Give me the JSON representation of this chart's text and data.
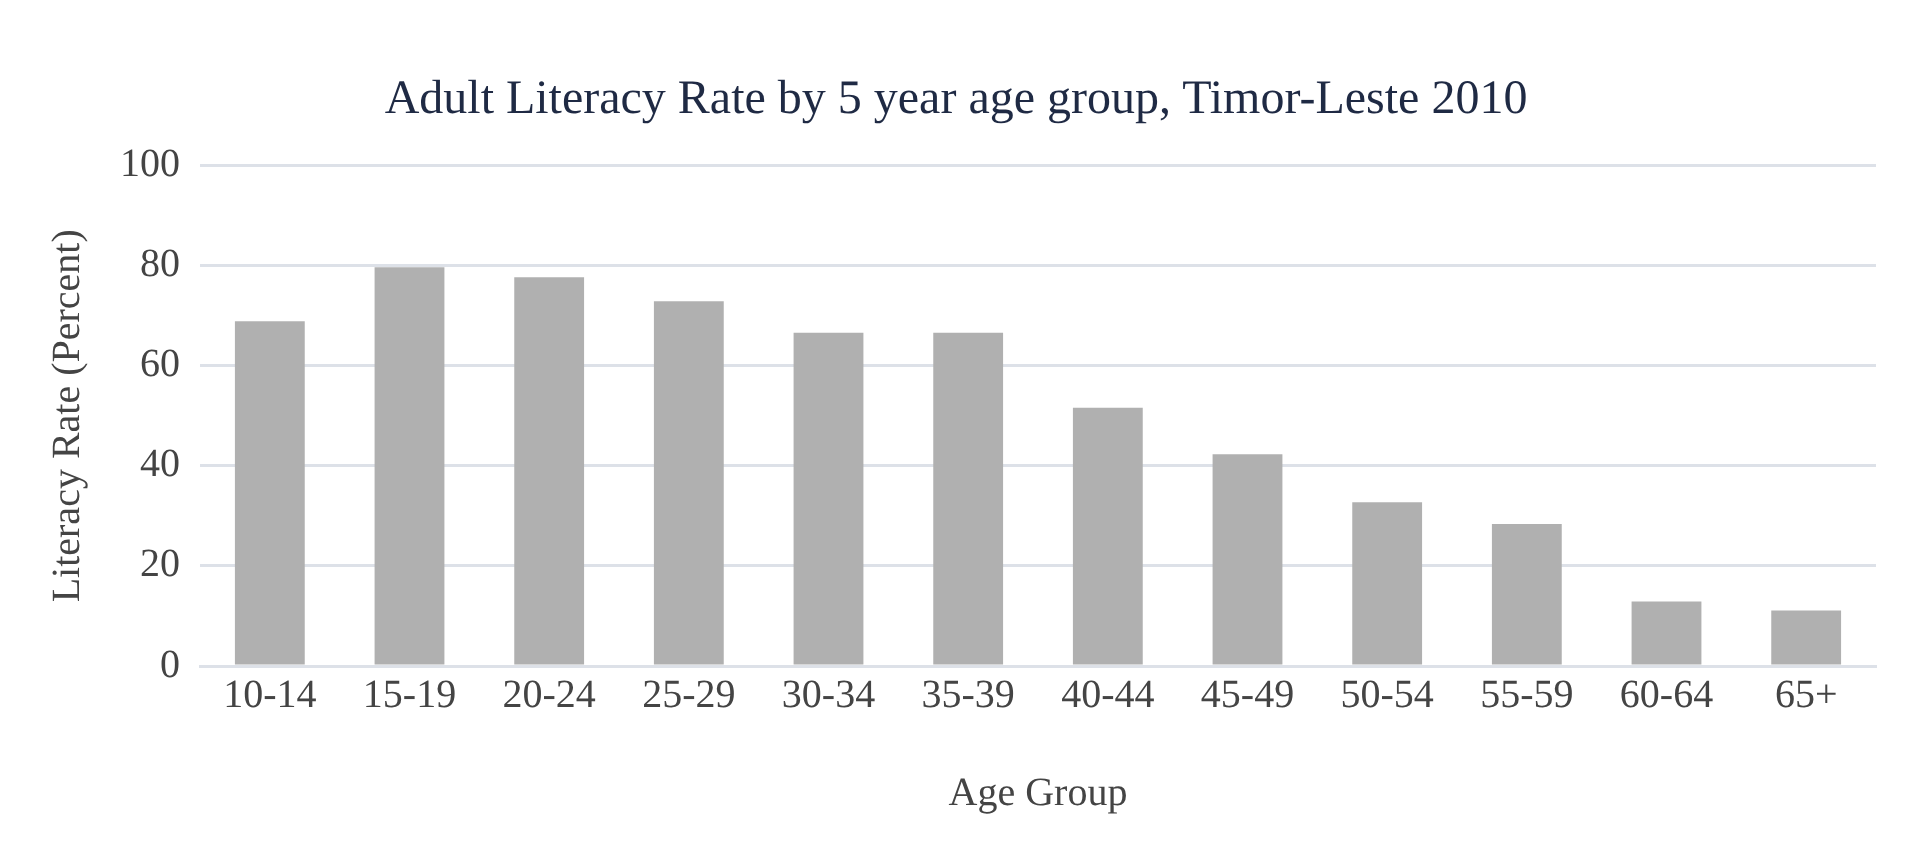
{
  "chart_data": {
    "type": "bar",
    "title": "Adult Literacy Rate by 5 year age group, Timor-Leste 2010",
    "xlabel": "Age Group",
    "ylabel": "Literacy Rate (Percent)",
    "categories": [
      "10-14",
      "15-19",
      "20-24",
      "25-29",
      "30-34",
      "35-39",
      "40-44",
      "45-49",
      "50-54",
      "55-59",
      "60-64",
      "65+"
    ],
    "values": [
      68.9,
      79.7,
      77.7,
      72.9,
      66.6,
      66.6,
      51.6,
      42.3,
      32.7,
      28.4,
      12.9,
      11.1
    ],
    "color": "#b0b0b0",
    "ylim": [
      0,
      100
    ],
    "yticks": [
      0,
      20,
      40,
      60,
      80,
      100
    ],
    "grid": "y"
  }
}
